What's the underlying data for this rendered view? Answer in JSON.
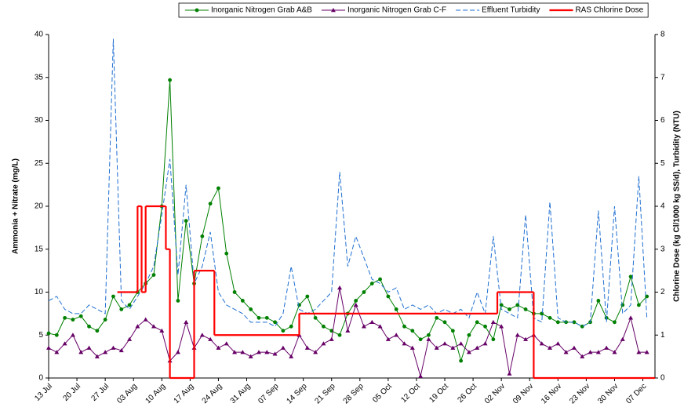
{
  "chart_data": {
    "type": "line",
    "x": [
      "13 Jul",
      "15 Jul",
      "17 Jul",
      "19 Jul",
      "21 Jul",
      "23 Jul",
      "25 Jul",
      "27 Jul",
      "29 Jul",
      "31 Jul",
      "02 Aug",
      "04 Aug",
      "06 Aug",
      "08 Aug",
      "10 Aug",
      "12 Aug",
      "14 Aug",
      "16 Aug",
      "18 Aug",
      "20 Aug",
      "22 Aug",
      "24 Aug",
      "26 Aug",
      "28 Aug",
      "30 Aug",
      "01 Sep",
      "03 Sep",
      "05 Sep",
      "07 Sep",
      "09 Sep",
      "11 Sep",
      "13 Sep",
      "15 Sep",
      "17 Sep",
      "19 Sep",
      "21 Sep",
      "23 Sep",
      "25 Sep",
      "27 Sep",
      "29 Sep",
      "01 Oct",
      "03 Oct",
      "05 Oct",
      "07 Oct",
      "09 Oct",
      "11 Oct",
      "13 Oct",
      "15 Oct",
      "17 Oct",
      "19 Oct",
      "21 Oct",
      "23 Oct",
      "25 Oct",
      "27 Oct",
      "29 Oct",
      "31 Oct",
      "02 Nov",
      "04 Nov",
      "06 Nov",
      "08 Nov",
      "10 Nov",
      "12 Nov",
      "14 Nov",
      "16 Nov",
      "18 Nov",
      "20 Nov",
      "22 Nov",
      "24 Nov",
      "26 Nov",
      "28 Nov",
      "30 Nov",
      "02 Dec",
      "04 Dec",
      "06 Dec",
      "08 Dec"
    ],
    "series": [
      {
        "name": "Inorganic Nitrogen Grab A&B",
        "color": "#008000",
        "marker": "circle",
        "linestyle": "solid",
        "values": [
          5.2,
          5,
          7,
          6.8,
          7.2,
          6,
          5.5,
          6.8,
          9.5,
          8,
          8.5,
          10,
          11,
          12,
          20,
          34.7,
          9,
          18.3,
          11,
          16.5,
          20.3,
          22.1,
          14.5,
          10,
          9,
          8,
          7,
          7,
          6.5,
          5.5,
          6,
          8.5,
          9.5,
          7,
          6,
          5.5,
          5,
          7.5,
          9,
          10,
          11,
          11.5,
          9.5,
          8,
          6,
          5.5,
          4.5,
          5,
          7,
          6.5,
          5.5,
          2,
          5,
          6.5,
          6,
          4.5,
          8.5,
          8,
          8.5,
          8,
          7.5,
          7.5,
          7,
          6.5,
          6.5,
          6.5,
          6,
          6.5,
          9,
          7,
          6.5,
          8.5,
          11.8,
          8.5,
          9.5
        ]
      },
      {
        "name": "Inorganic Nitrogen Grab C-F",
        "color": "#660066",
        "marker": "triangle",
        "linestyle": "solid",
        "values": [
          3.5,
          3,
          4,
          5,
          3,
          3.5,
          2.5,
          3,
          3.5,
          3.2,
          4.5,
          6,
          6.8,
          6,
          5.5,
          2,
          3,
          6.5,
          3.5,
          5,
          4.5,
          3.5,
          4,
          3,
          3,
          2.5,
          3,
          3,
          2.8,
          3.5,
          2.5,
          5,
          3.5,
          3,
          4,
          4.5,
          10.5,
          5.5,
          8.5,
          6,
          6.5,
          6,
          4.5,
          5,
          4,
          3.5,
          0.2,
          4.5,
          3.5,
          4,
          3.5,
          4,
          3,
          3.5,
          4,
          6.5,
          6,
          0.5,
          5,
          4.5,
          5,
          4,
          3.5,
          4,
          3,
          3.5,
          2.5,
          3,
          3,
          3.5,
          3,
          4.5,
          7,
          3,
          3
        ]
      },
      {
        "name": "Effluent Turbidity",
        "color": "#1f6fd0",
        "marker": "none",
        "linestyle": "dashed",
        "axis": "y2",
        "values": [
          1.8,
          1.9,
          1.6,
          1.5,
          1.5,
          1.7,
          1.6,
          1.5,
          7.9,
          1.8,
          1.6,
          1.9,
          2.2,
          2.6,
          3.8,
          5.1,
          2.4,
          4.5,
          2.2,
          2.6,
          3.4,
          2.0,
          1.7,
          1.6,
          1.5,
          1.3,
          1.3,
          1.3,
          1.2,
          1.5,
          2.6,
          1.6,
          1.5,
          1.6,
          1.8,
          2.0,
          4.8,
          2.6,
          3.3,
          2.8,
          2.3,
          2.2,
          2.0,
          2.1,
          1.6,
          1.7,
          1.6,
          1.7,
          1.5,
          1.6,
          1.5,
          1.6,
          1.4,
          2.0,
          1.5,
          3.3,
          1.6,
          1.5,
          1.4,
          3.8,
          1.4,
          1.3,
          4.1,
          1.4,
          1.3,
          1.3,
          1.2,
          1.3,
          3.9,
          1.3,
          4.0,
          1.5,
          1.7,
          4.7,
          1.4
        ]
      },
      {
        "name": "RAS Chlorine Dose",
        "color": "#ff0000",
        "marker": "none",
        "linestyle": "step",
        "axis": "y2",
        "x": [
          "30 Jul",
          "04 Aug",
          "05 Aug",
          "06 Aug",
          "11 Aug",
          "12 Aug",
          "18 Aug",
          "23 Aug",
          "13 Sep",
          "01 Nov",
          "10 Nov"
        ],
        "values": [
          2,
          4,
          2,
          4,
          3,
          0,
          2.5,
          1,
          1.5,
          2,
          0
        ]
      }
    ],
    "xlim": [
      "13 Jul",
      "10 Dec"
    ],
    "xticks": [
      "13 Jul",
      "20 Jul",
      "27 Jul",
      "03 Aug",
      "10 Aug",
      "17 Aug",
      "24 Aug",
      "31 Aug",
      "07 Sep",
      "14 Sep",
      "21 Sep",
      "28 Sep",
      "05 Oct",
      "12 Oct",
      "19 Oct",
      "26 Oct",
      "02 Nov",
      "09 Nov",
      "16 Nov",
      "23 Nov",
      "30 Nov",
      "07 Dec"
    ],
    "ylim": [
      0,
      40
    ],
    "yticks": [
      0,
      5,
      10,
      15,
      20,
      25,
      30,
      35,
      40
    ],
    "y2lim": [
      0,
      8
    ],
    "y2ticks": [
      0,
      1,
      2,
      3,
      4,
      5,
      6,
      7,
      8
    ],
    "y_label": "Ammonia + Nitrate (mg/L)",
    "y2_label": "Chlorine Dose (kg Cl/1000 kg SS/d), Turbidity (NTU)",
    "legend": "top"
  }
}
